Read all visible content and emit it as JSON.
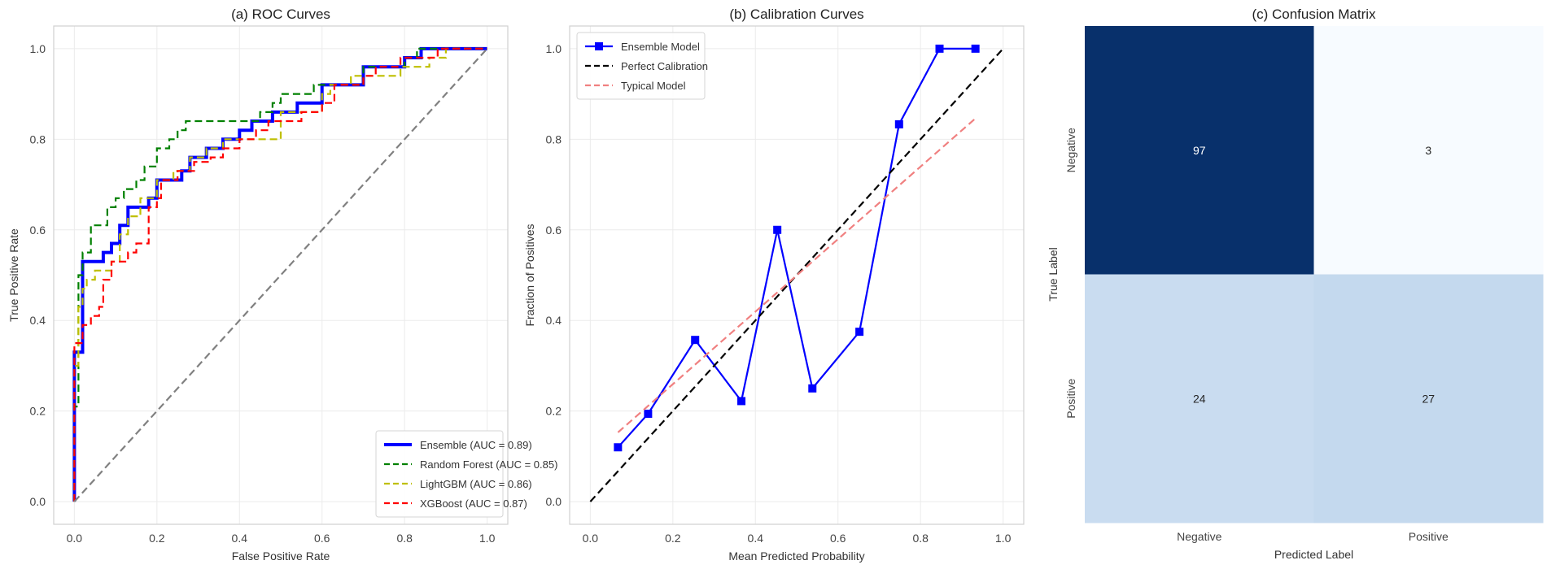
{
  "chart_data": [
    {
      "type": "line",
      "title": "(a) ROC Curves",
      "xlabel": "False Positive Rate",
      "ylabel": "True Positive Rate",
      "xlim": [
        -0.05,
        1.05
      ],
      "ylim": [
        -0.05,
        1.05
      ],
      "xticks": [
        "0.0",
        "0.2",
        "0.4",
        "0.6",
        "0.8",
        "1.0"
      ],
      "yticks": [
        "0.0",
        "0.2",
        "0.4",
        "0.6",
        "0.8",
        "1.0"
      ],
      "grid": true,
      "legend_position": "lower-right",
      "series": [
        {
          "name": "Ensemble (AUC = 0.89)",
          "color": "#0000ff",
          "style": "solid",
          "points": [
            [
              0,
              0
            ],
            [
              0,
              0.33
            ],
            [
              0.02,
              0.33
            ],
            [
              0.02,
              0.53
            ],
            [
              0.07,
              0.53
            ],
            [
              0.07,
              0.55
            ],
            [
              0.09,
              0.55
            ],
            [
              0.09,
              0.57
            ],
            [
              0.11,
              0.57
            ],
            [
              0.11,
              0.61
            ],
            [
              0.13,
              0.61
            ],
            [
              0.13,
              0.65
            ],
            [
              0.18,
              0.65
            ],
            [
              0.18,
              0.67
            ],
            [
              0.2,
              0.67
            ],
            [
              0.2,
              0.71
            ],
            [
              0.26,
              0.71
            ],
            [
              0.26,
              0.73
            ],
            [
              0.28,
              0.73
            ],
            [
              0.28,
              0.76
            ],
            [
              0.32,
              0.76
            ],
            [
              0.32,
              0.78
            ],
            [
              0.36,
              0.78
            ],
            [
              0.36,
              0.8
            ],
            [
              0.4,
              0.8
            ],
            [
              0.4,
              0.82
            ],
            [
              0.43,
              0.82
            ],
            [
              0.43,
              0.84
            ],
            [
              0.48,
              0.84
            ],
            [
              0.48,
              0.86
            ],
            [
              0.54,
              0.86
            ],
            [
              0.54,
              0.88
            ],
            [
              0.6,
              0.88
            ],
            [
              0.6,
              0.92
            ],
            [
              0.7,
              0.92
            ],
            [
              0.7,
              0.96
            ],
            [
              0.8,
              0.96
            ],
            [
              0.8,
              0.98
            ],
            [
              0.84,
              0.98
            ],
            [
              0.84,
              1
            ],
            [
              1,
              1
            ]
          ]
        },
        {
          "name": "Random Forest (AUC = 0.85)",
          "color": "#008000",
          "style": "dashed",
          "points": [
            [
              0,
              0
            ],
            [
              0,
              0.21
            ],
            [
              0.01,
              0.21
            ],
            [
              0.01,
              0.5
            ],
            [
              0.02,
              0.5
            ],
            [
              0.02,
              0.55
            ],
            [
              0.04,
              0.55
            ],
            [
              0.04,
              0.61
            ],
            [
              0.08,
              0.61
            ],
            [
              0.08,
              0.65
            ],
            [
              0.1,
              0.65
            ],
            [
              0.1,
              0.67
            ],
            [
              0.12,
              0.67
            ],
            [
              0.12,
              0.69
            ],
            [
              0.15,
              0.69
            ],
            [
              0.15,
              0.71
            ],
            [
              0.17,
              0.71
            ],
            [
              0.17,
              0.74
            ],
            [
              0.2,
              0.74
            ],
            [
              0.2,
              0.78
            ],
            [
              0.23,
              0.78
            ],
            [
              0.23,
              0.8
            ],
            [
              0.25,
              0.8
            ],
            [
              0.25,
              0.82
            ],
            [
              0.27,
              0.82
            ],
            [
              0.27,
              0.84
            ],
            [
              0.45,
              0.84
            ],
            [
              0.45,
              0.86
            ],
            [
              0.48,
              0.86
            ],
            [
              0.48,
              0.88
            ],
            [
              0.5,
              0.88
            ],
            [
              0.5,
              0.9
            ],
            [
              0.58,
              0.9
            ],
            [
              0.58,
              0.92
            ],
            [
              0.7,
              0.92
            ],
            [
              0.7,
              0.96
            ],
            [
              0.8,
              0.96
            ],
            [
              0.8,
              0.98
            ],
            [
              0.83,
              0.98
            ],
            [
              0.83,
              1
            ],
            [
              1,
              1
            ]
          ]
        },
        {
          "name": "LightGBM  (AUC = 0.86)",
          "color": "#bfbf00",
          "style": "dashed",
          "points": [
            [
              0,
              0
            ],
            [
              0,
              0.3
            ],
            [
              0.01,
              0.3
            ],
            [
              0.01,
              0.43
            ],
            [
              0.02,
              0.43
            ],
            [
              0.02,
              0.47
            ],
            [
              0.03,
              0.47
            ],
            [
              0.03,
              0.49
            ],
            [
              0.05,
              0.49
            ],
            [
              0.05,
              0.51
            ],
            [
              0.09,
              0.51
            ],
            [
              0.09,
              0.53
            ],
            [
              0.11,
              0.53
            ],
            [
              0.11,
              0.59
            ],
            [
              0.13,
              0.59
            ],
            [
              0.13,
              0.63
            ],
            [
              0.16,
              0.63
            ],
            [
              0.16,
              0.67
            ],
            [
              0.2,
              0.67
            ],
            [
              0.2,
              0.71
            ],
            [
              0.24,
              0.71
            ],
            [
              0.24,
              0.73
            ],
            [
              0.28,
              0.73
            ],
            [
              0.28,
              0.76
            ],
            [
              0.32,
              0.76
            ],
            [
              0.32,
              0.78
            ],
            [
              0.36,
              0.78
            ],
            [
              0.36,
              0.8
            ],
            [
              0.5,
              0.8
            ],
            [
              0.5,
              0.86
            ],
            [
              0.6,
              0.86
            ],
            [
              0.6,
              0.9
            ],
            [
              0.62,
              0.9
            ],
            [
              0.62,
              0.92
            ],
            [
              0.67,
              0.92
            ],
            [
              0.67,
              0.94
            ],
            [
              0.79,
              0.94
            ],
            [
              0.79,
              0.96
            ],
            [
              0.86,
              0.96
            ],
            [
              0.86,
              0.98
            ],
            [
              0.9,
              0.98
            ],
            [
              0.9,
              1
            ],
            [
              1,
              1
            ]
          ]
        },
        {
          "name": "XGBoost (AUC = 0.87)",
          "color": "#ff0000",
          "style": "dashed",
          "points": [
            [
              0,
              0
            ],
            [
              0,
              0.35
            ],
            [
              0.02,
              0.35
            ],
            [
              0.02,
              0.39
            ],
            [
              0.04,
              0.39
            ],
            [
              0.04,
              0.41
            ],
            [
              0.06,
              0.41
            ],
            [
              0.06,
              0.43
            ],
            [
              0.07,
              0.43
            ],
            [
              0.07,
              0.49
            ],
            [
              0.09,
              0.49
            ],
            [
              0.09,
              0.53
            ],
            [
              0.13,
              0.53
            ],
            [
              0.13,
              0.55
            ],
            [
              0.15,
              0.55
            ],
            [
              0.15,
              0.57
            ],
            [
              0.18,
              0.57
            ],
            [
              0.18,
              0.65
            ],
            [
              0.2,
              0.65
            ],
            [
              0.2,
              0.67
            ],
            [
              0.21,
              0.67
            ],
            [
              0.21,
              0.71
            ],
            [
              0.25,
              0.71
            ],
            [
              0.25,
              0.73
            ],
            [
              0.29,
              0.73
            ],
            [
              0.29,
              0.75
            ],
            [
              0.33,
              0.75
            ],
            [
              0.33,
              0.76
            ],
            [
              0.36,
              0.76
            ],
            [
              0.36,
              0.78
            ],
            [
              0.4,
              0.78
            ],
            [
              0.4,
              0.8
            ],
            [
              0.44,
              0.8
            ],
            [
              0.44,
              0.82
            ],
            [
              0.47,
              0.82
            ],
            [
              0.47,
              0.84
            ],
            [
              0.55,
              0.84
            ],
            [
              0.55,
              0.86
            ],
            [
              0.6,
              0.86
            ],
            [
              0.6,
              0.88
            ],
            [
              0.63,
              0.88
            ],
            [
              0.63,
              0.92
            ],
            [
              0.7,
              0.92
            ],
            [
              0.7,
              0.94
            ],
            [
              0.73,
              0.94
            ],
            [
              0.73,
              0.96
            ],
            [
              0.79,
              0.96
            ],
            [
              0.79,
              0.98
            ],
            [
              0.88,
              0.98
            ],
            [
              0.88,
              1
            ],
            [
              1,
              1
            ]
          ]
        },
        {
          "name": "",
          "color": "#808080",
          "style": "dashed",
          "points": [
            [
              0,
              0
            ],
            [
              1,
              1
            ]
          ]
        }
      ]
    },
    {
      "type": "line",
      "title": "(b) Calibration Curves",
      "xlabel": "Mean Predicted Probability",
      "ylabel": "Fraction of Positives",
      "xlim": [
        -0.05,
        1.05
      ],
      "ylim": [
        -0.05,
        1.05
      ],
      "xticks": [
        "0.0",
        "0.2",
        "0.4",
        "0.6",
        "0.8",
        "1.0"
      ],
      "yticks": [
        "0.0",
        "0.2",
        "0.4",
        "0.6",
        "0.8",
        "1.0"
      ],
      "grid": true,
      "legend_position": "upper-left",
      "series": [
        {
          "name": "Ensemble Model",
          "color": "#0000ff",
          "style": "solid",
          "marker": "square",
          "points": [
            [
              0.067,
              0.12
            ],
            [
              0.14,
              0.194
            ],
            [
              0.254,
              0.357
            ],
            [
              0.366,
              0.222
            ],
            [
              0.453,
              0.6
            ],
            [
              0.538,
              0.25
            ],
            [
              0.652,
              0.375
            ],
            [
              0.748,
              0.833
            ],
            [
              0.846,
              1.0
            ],
            [
              0.933,
              1.0
            ]
          ]
        },
        {
          "name": "Perfect Calibration",
          "color": "#000000",
          "style": "dashed",
          "points": [
            [
              0,
              0
            ],
            [
              1,
              1
            ]
          ]
        },
        {
          "name": "Typical Model",
          "color": "#f08080",
          "style": "dashed",
          "points": [
            [
              0.067,
              0.153
            ],
            [
              0.933,
              0.846
            ]
          ]
        }
      ]
    },
    {
      "type": "heatmap",
      "title": "(c) Confusion Matrix",
      "xlabel": "Predicted Label",
      "ylabel": "True Label",
      "xticks": [
        "Negative",
        "Positive"
      ],
      "yticks": [
        "Negative",
        "Positive"
      ],
      "colormap": "Blues",
      "values": [
        [
          97,
          3
        ],
        [
          24,
          27
        ]
      ],
      "cell_colors": [
        [
          "#08306b",
          "#f7fbff"
        ],
        [
          "#c9dcf0",
          "#c4d9ee"
        ]
      ],
      "text_colors": [
        [
          "#ffffff",
          "#262626"
        ],
        [
          "#262626",
          "#262626"
        ]
      ]
    }
  ]
}
